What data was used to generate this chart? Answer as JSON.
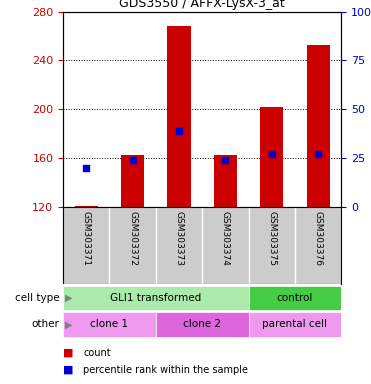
{
  "title": "GDS3550 / AFFX-LysX-3_at",
  "samples": [
    "GSM303371",
    "GSM303372",
    "GSM303373",
    "GSM303374",
    "GSM303375",
    "GSM303376"
  ],
  "counts": [
    121,
    163,
    268,
    163,
    202,
    253
  ],
  "percentile_ranks": [
    20,
    24,
    39,
    24,
    27,
    27
  ],
  "bar_bottom": 120,
  "ylim_left": [
    120,
    280
  ],
  "yticks_left": [
    120,
    160,
    200,
    240,
    280
  ],
  "ylim_right": [
    0,
    100
  ],
  "yticks_right": [
    0,
    25,
    50,
    75,
    100
  ],
  "yticklabels_right": [
    "0",
    "25",
    "50",
    "75",
    "100%"
  ],
  "bar_color": "#cc0000",
  "dot_color": "#0000cc",
  "bar_width": 0.5,
  "cell_type_groups": [
    {
      "label": "GLI1 transformed",
      "start": 0,
      "end": 3,
      "color": "#aaeaaa"
    },
    {
      "label": "control",
      "start": 4,
      "end": 5,
      "color": "#44cc44"
    }
  ],
  "other_groups": [
    {
      "label": "clone 1",
      "start": 0,
      "end": 1,
      "color": "#ee99ee"
    },
    {
      "label": "clone 2",
      "start": 2,
      "end": 3,
      "color": "#dd66dd"
    },
    {
      "label": "parental cell",
      "start": 4,
      "end": 5,
      "color": "#ee99ee"
    }
  ],
  "legend_count_label": "count",
  "legend_pct_label": "percentile rank within the sample",
  "cell_type_label": "cell type",
  "other_label": "other",
  "tick_label_color_left": "#cc0000",
  "tick_label_color_right": "#0000cc",
  "xlabel_area_bg": "#cccccc",
  "grid_color": "#000000"
}
